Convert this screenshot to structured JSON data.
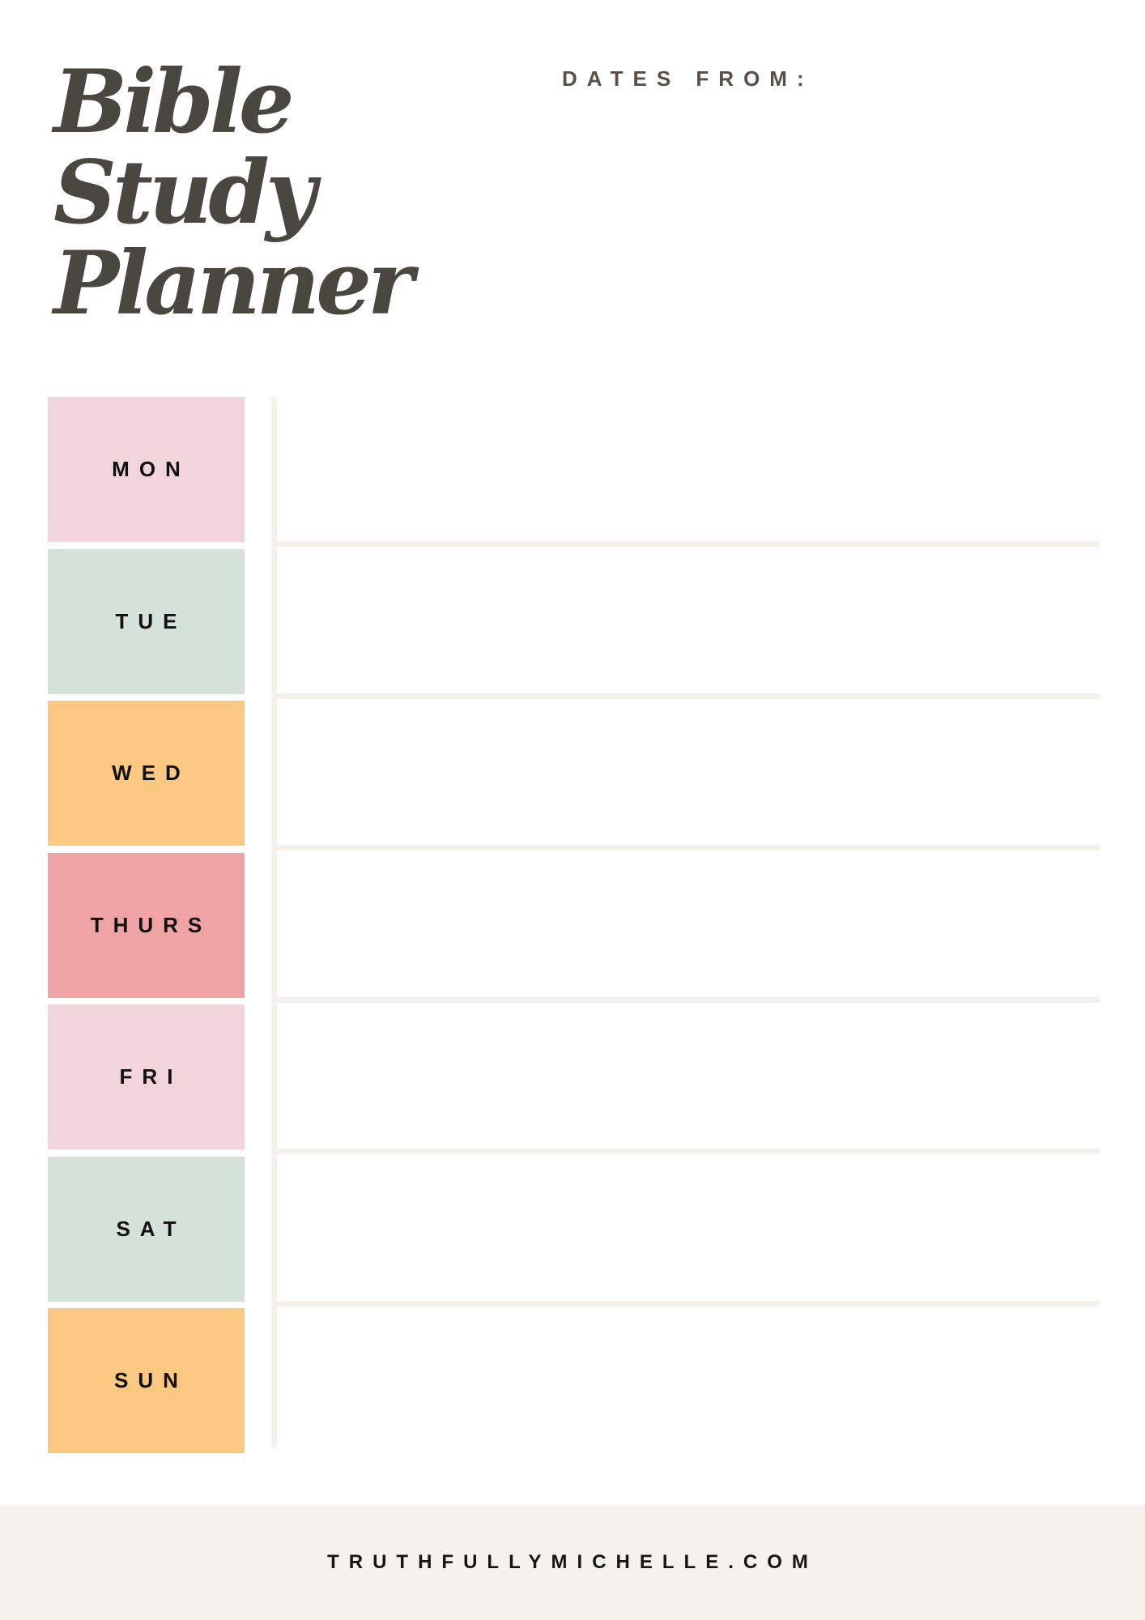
{
  "title": {
    "line1": "Bible",
    "line2": "Study",
    "line3": "Planner"
  },
  "dates_label": "DATES FROM:",
  "days": [
    {
      "label": "MON",
      "color": "#f2d5db"
    },
    {
      "label": "TUE",
      "color": "#d5e2d8"
    },
    {
      "label": "WED",
      "color": "#fac880"
    },
    {
      "label": "THURS",
      "color": "#f0a3a5"
    },
    {
      "label": "FRI",
      "color": "#f2d5db"
    },
    {
      "label": "SAT",
      "color": "#d5e2d8"
    },
    {
      "label": "SUN",
      "color": "#fac880"
    }
  ],
  "footer": {
    "website": "TRUTHFULLYMICHELLE.COM"
  }
}
